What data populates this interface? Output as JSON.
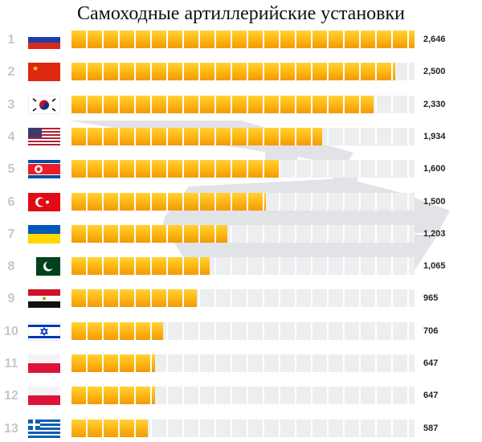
{
  "title": "Самоходные артиллерийские установки",
  "chart_data": {
    "type": "bar",
    "orientation": "horizontal",
    "title": "Самоходные артиллерийские установки",
    "xlim": [
      0,
      2646
    ],
    "grid": false,
    "legend": "none",
    "bar_color": "#ffb915",
    "track_color": "#eceef0",
    "rows": [
      {
        "rank": "1",
        "flag": "russia",
        "value": 2646,
        "label": "2,646"
      },
      {
        "rank": "2",
        "flag": "china",
        "value": 2500,
        "label": "2,500"
      },
      {
        "rank": "3",
        "flag": "south-korea",
        "value": 2330,
        "label": "2,330"
      },
      {
        "rank": "4",
        "flag": "usa",
        "value": 1934,
        "label": "1,934"
      },
      {
        "rank": "5",
        "flag": "north-korea",
        "value": 1600,
        "label": "1,600"
      },
      {
        "rank": "6",
        "flag": "turkey",
        "value": 1500,
        "label": "1,500"
      },
      {
        "rank": "7",
        "flag": "ukraine",
        "value": 1203,
        "label": "1,203"
      },
      {
        "rank": "8",
        "flag": "pakistan",
        "value": 1065,
        "label": "1,065"
      },
      {
        "rank": "9",
        "flag": "egypt",
        "value": 965,
        "label": "965"
      },
      {
        "rank": "10",
        "flag": "israel",
        "value": 706,
        "label": "706"
      },
      {
        "rank": "11",
        "flag": "poland",
        "value": 647,
        "label": "647"
      },
      {
        "rank": "12",
        "flag": "poland",
        "value": 647,
        "label": "647"
      },
      {
        "rank": "13",
        "flag": "greece",
        "value": 587,
        "label": "587"
      }
    ]
  }
}
